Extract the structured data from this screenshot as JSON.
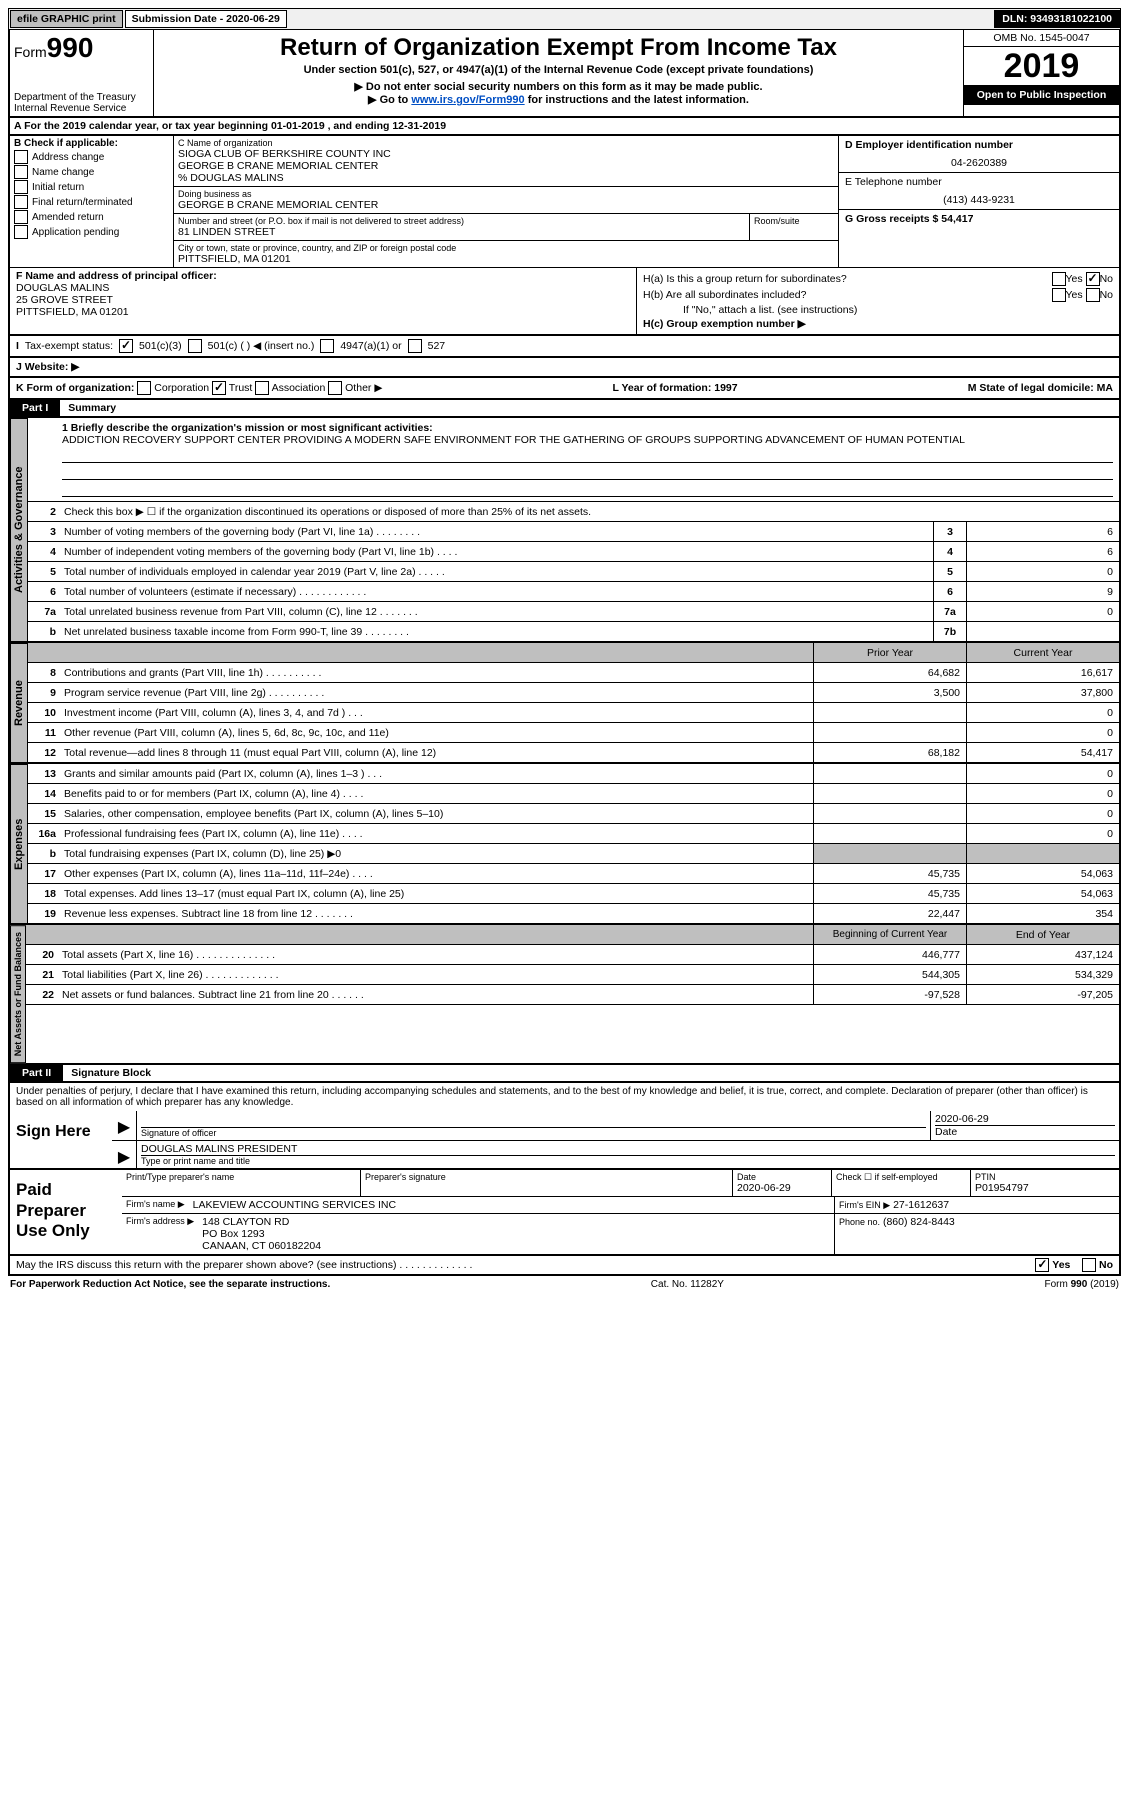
{
  "topbar": {
    "efile": "efile GRAPHIC print",
    "submission_label": "Submission Date - 2020-06-29",
    "dln": "DLN: 93493181022100"
  },
  "header": {
    "form_prefix": "Form",
    "form_number": "990",
    "title": "Return of Organization Exempt From Income Tax",
    "subtitle": "Under section 501(c), 527, or 4947(a)(1) of the Internal Revenue Code (except private foundations)",
    "note1": "▶ Do not enter social security numbers on this form as it may be made public.",
    "note2_pre": "▶ Go to ",
    "note2_link": "www.irs.gov/Form990",
    "note2_post": " for instructions and the latest information.",
    "dept": "Department of the Treasury\nInternal Revenue Service",
    "omb": "OMB No. 1545-0047",
    "year": "2019",
    "open_public": "Open to Public Inspection"
  },
  "lineA": "A For the 2019 calendar year, or tax year beginning 01-01-2019   , and ending 12-31-2019",
  "sectionB": {
    "title": "B Check if applicable:",
    "items": [
      "Address change",
      "Name change",
      "Initial return",
      "Final return/terminated",
      "Amended return",
      "Application pending"
    ]
  },
  "sectionC": {
    "name_label": "C Name of organization",
    "name1": "SIOGA CLUB OF BERKSHIRE COUNTY INC",
    "name2": "GEORGE B CRANE MEMORIAL CENTER",
    "care_of": "% DOUGLAS MALINS",
    "dba_label": "Doing business as",
    "dba": "GEORGE B CRANE MEMORIAL CENTER",
    "addr_label": "Number and street (or P.O. box if mail is not delivered to street address)",
    "addr": "81 LINDEN STREET",
    "room_label": "Room/suite",
    "city_label": "City or town, state or province, country, and ZIP or foreign postal code",
    "city": "PITTSFIELD, MA  01201"
  },
  "sectionD": {
    "ein_label": "D Employer identification number",
    "ein": "04-2620389",
    "phone_label": "E Telephone number",
    "phone": "(413) 443-9231",
    "gross_label": "G Gross receipts $ 54,417"
  },
  "sectionF": {
    "label": "F Name and address of principal officer:",
    "name": "DOUGLAS MALINS",
    "addr1": "25 GROVE STREET",
    "addr2": "PITTSFIELD, MA  01201"
  },
  "sectionH": {
    "ha": "H(a)  Is this a group return for subordinates?",
    "hb": "H(b)  Are all subordinates included?",
    "hb_note": "If \"No,\" attach a list. (see instructions)",
    "hc": "H(c)  Group exemption number ▶",
    "yes": "Yes",
    "no": "No"
  },
  "lineI": {
    "label": "Tax-exempt status:",
    "o1": "501(c)(3)",
    "o2": "501(c) (  ) ◀ (insert no.)",
    "o3": "4947(a)(1) or",
    "o4": "527"
  },
  "lineJ": "J   Website: ▶",
  "lineK": {
    "label": "K Form of organization:",
    "corp": "Corporation",
    "trust": "Trust",
    "assoc": "Association",
    "other": "Other ▶",
    "l_label": "L Year of formation: 1997",
    "m_label": "M State of legal domicile: MA"
  },
  "part1": {
    "title": "Part I",
    "subtitle": "Summary",
    "tabs": {
      "gov": "Activities & Governance",
      "rev": "Revenue",
      "exp": "Expenses",
      "net": "Net Assets or Fund Balances"
    },
    "briefly_label": "1 Briefly describe the organization's mission or most significant activities:",
    "briefly_text": "ADDICTION RECOVERY SUPPORT CENTER PROVIDING A MODERN SAFE ENVIRONMENT FOR THE GATHERING OF GROUPS SUPPORTING ADVANCEMENT OF HUMAN POTENTIAL",
    "line2": "Check this box ▶ ☐ if the organization discontinued its operations or disposed of more than 25% of its net assets.",
    "hdr_prior": "Prior Year",
    "hdr_current": "Current Year",
    "hdr_begin": "Beginning of Current Year",
    "hdr_end": "End of Year",
    "rows_gov": [
      {
        "n": "3",
        "d": "Number of voting members of the governing body (Part VI, line 1a)  .   .   .   .   .   .   .   .",
        "box": "3",
        "v": "6"
      },
      {
        "n": "4",
        "d": "Number of independent voting members of the governing body (Part VI, line 1b)  .   .   .   .",
        "box": "4",
        "v": "6"
      },
      {
        "n": "5",
        "d": "Total number of individuals employed in calendar year 2019 (Part V, line 2a)  .   .   .   .   .",
        "box": "5",
        "v": "0"
      },
      {
        "n": "6",
        "d": "Total number of volunteers (estimate if necessary)   .   .   .   .   .   .   .   .   .   .   .   .",
        "box": "6",
        "v": "9"
      },
      {
        "n": "7a",
        "d": "Total unrelated business revenue from Part VIII, column (C), line 12  .   .   .   .   .   .   .",
        "box": "7a",
        "v": "0"
      },
      {
        "n": "b",
        "d": "Net unrelated business taxable income from Form 990-T, line 39   .   .   .   .   .   .   .   .",
        "box": "7b",
        "v": ""
      }
    ],
    "rows_rev": [
      {
        "n": "8",
        "d": "Contributions and grants (Part VIII, line 1h)   .   .   .   .   .   .   .   .   .   .",
        "p": "64,682",
        "c": "16,617"
      },
      {
        "n": "9",
        "d": "Program service revenue (Part VIII, line 2g)   .   .   .   .   .   .   .   .   .   .",
        "p": "3,500",
        "c": "37,800"
      },
      {
        "n": "10",
        "d": "Investment income (Part VIII, column (A), lines 3, 4, and 7d )  .   .   .",
        "p": "",
        "c": "0"
      },
      {
        "n": "11",
        "d": "Other revenue (Part VIII, column (A), lines 5, 6d, 8c, 9c, 10c, and 11e)",
        "p": "",
        "c": "0"
      },
      {
        "n": "12",
        "d": "Total revenue—add lines 8 through 11 (must equal Part VIII, column (A), line 12)",
        "p": "68,182",
        "c": "54,417"
      }
    ],
    "rows_exp": [
      {
        "n": "13",
        "d": "Grants and similar amounts paid (Part IX, column (A), lines 1–3 )  .   .   .",
        "p": "",
        "c": "0"
      },
      {
        "n": "14",
        "d": "Benefits paid to or for members (Part IX, column (A), line 4)  .   .   .   .",
        "p": "",
        "c": "0"
      },
      {
        "n": "15",
        "d": "Salaries, other compensation, employee benefits (Part IX, column (A), lines 5–10)",
        "p": "",
        "c": "0"
      },
      {
        "n": "16a",
        "d": "Professional fundraising fees (Part IX, column (A), line 11e)  .   .   .   .",
        "p": "",
        "c": "0"
      },
      {
        "n": "b",
        "d": "Total fundraising expenses (Part IX, column (D), line 25) ▶0",
        "p": "SHADE",
        "c": "SHADE"
      },
      {
        "n": "17",
        "d": "Other expenses (Part IX, column (A), lines 11a–11d, 11f–24e)  .   .   .   .",
        "p": "45,735",
        "c": "54,063"
      },
      {
        "n": "18",
        "d": "Total expenses. Add lines 13–17 (must equal Part IX, column (A), line 25)",
        "p": "45,735",
        "c": "54,063"
      },
      {
        "n": "19",
        "d": "Revenue less expenses. Subtract line 18 from line 12  .   .   .   .   .   .   .",
        "p": "22,447",
        "c": "354"
      }
    ],
    "rows_net": [
      {
        "n": "20",
        "d": "Total assets (Part X, line 16)  .   .   .   .   .   .   .   .   .   .   .   .   .   .",
        "p": "446,777",
        "c": "437,124"
      },
      {
        "n": "21",
        "d": "Total liabilities (Part X, line 26)  .   .   .   .   .   .   .   .   .   .   .   .   .",
        "p": "544,305",
        "c": "534,329"
      },
      {
        "n": "22",
        "d": "Net assets or fund balances. Subtract line 21 from line 20  .   .   .   .   .   .",
        "p": "-97,528",
        "c": "-97,205"
      }
    ]
  },
  "part2": {
    "title": "Part II",
    "subtitle": "Signature Block",
    "declaration": "Under penalties of perjury, I declare that I have examined this return, including accompanying schedules and statements, and to the best of my knowledge and belief, it is true, correct, and complete. Declaration of preparer (other than officer) is based on all information of which preparer has any knowledge."
  },
  "sign": {
    "label": "Sign Here",
    "sig_label": "Signature of officer",
    "date": "2020-06-29",
    "date_label": "Date",
    "name_title": "DOUGLAS MALINS  PRESIDENT",
    "name_label": "Type or print name and title"
  },
  "prep": {
    "label": "Paid Preparer Use Only",
    "c_print": "Print/Type preparer's name",
    "c_sig": "Preparer's signature",
    "c_date_l": "Date",
    "c_date": "2020-06-29",
    "c_check": "Check ☐ if self-employed",
    "c_ptin_l": "PTIN",
    "c_ptin": "P01954797",
    "firm_name_l": "Firm's name    ▶",
    "firm_name": "LAKEVIEW ACCOUNTING SERVICES INC",
    "firm_ein_l": "Firm's EIN ▶",
    "firm_ein": "27-1612637",
    "firm_addr_l": "Firm's address ▶",
    "firm_addr": "148 CLAYTON RD\nPO Box 1293\nCANAAN, CT  060182204",
    "phone_l": "Phone no.",
    "phone": "(860) 824-8443"
  },
  "footer": {
    "discuss": "May the IRS discuss this return with the preparer shown above? (see instructions)   .   .   .   .   .   .   .   .   .   .   .   .   .",
    "yes": "Yes",
    "no": "No",
    "pra": "For Paperwork Reduction Act Notice, see the separate instructions.",
    "cat": "Cat. No. 11282Y",
    "form": "Form 990 (2019)"
  }
}
